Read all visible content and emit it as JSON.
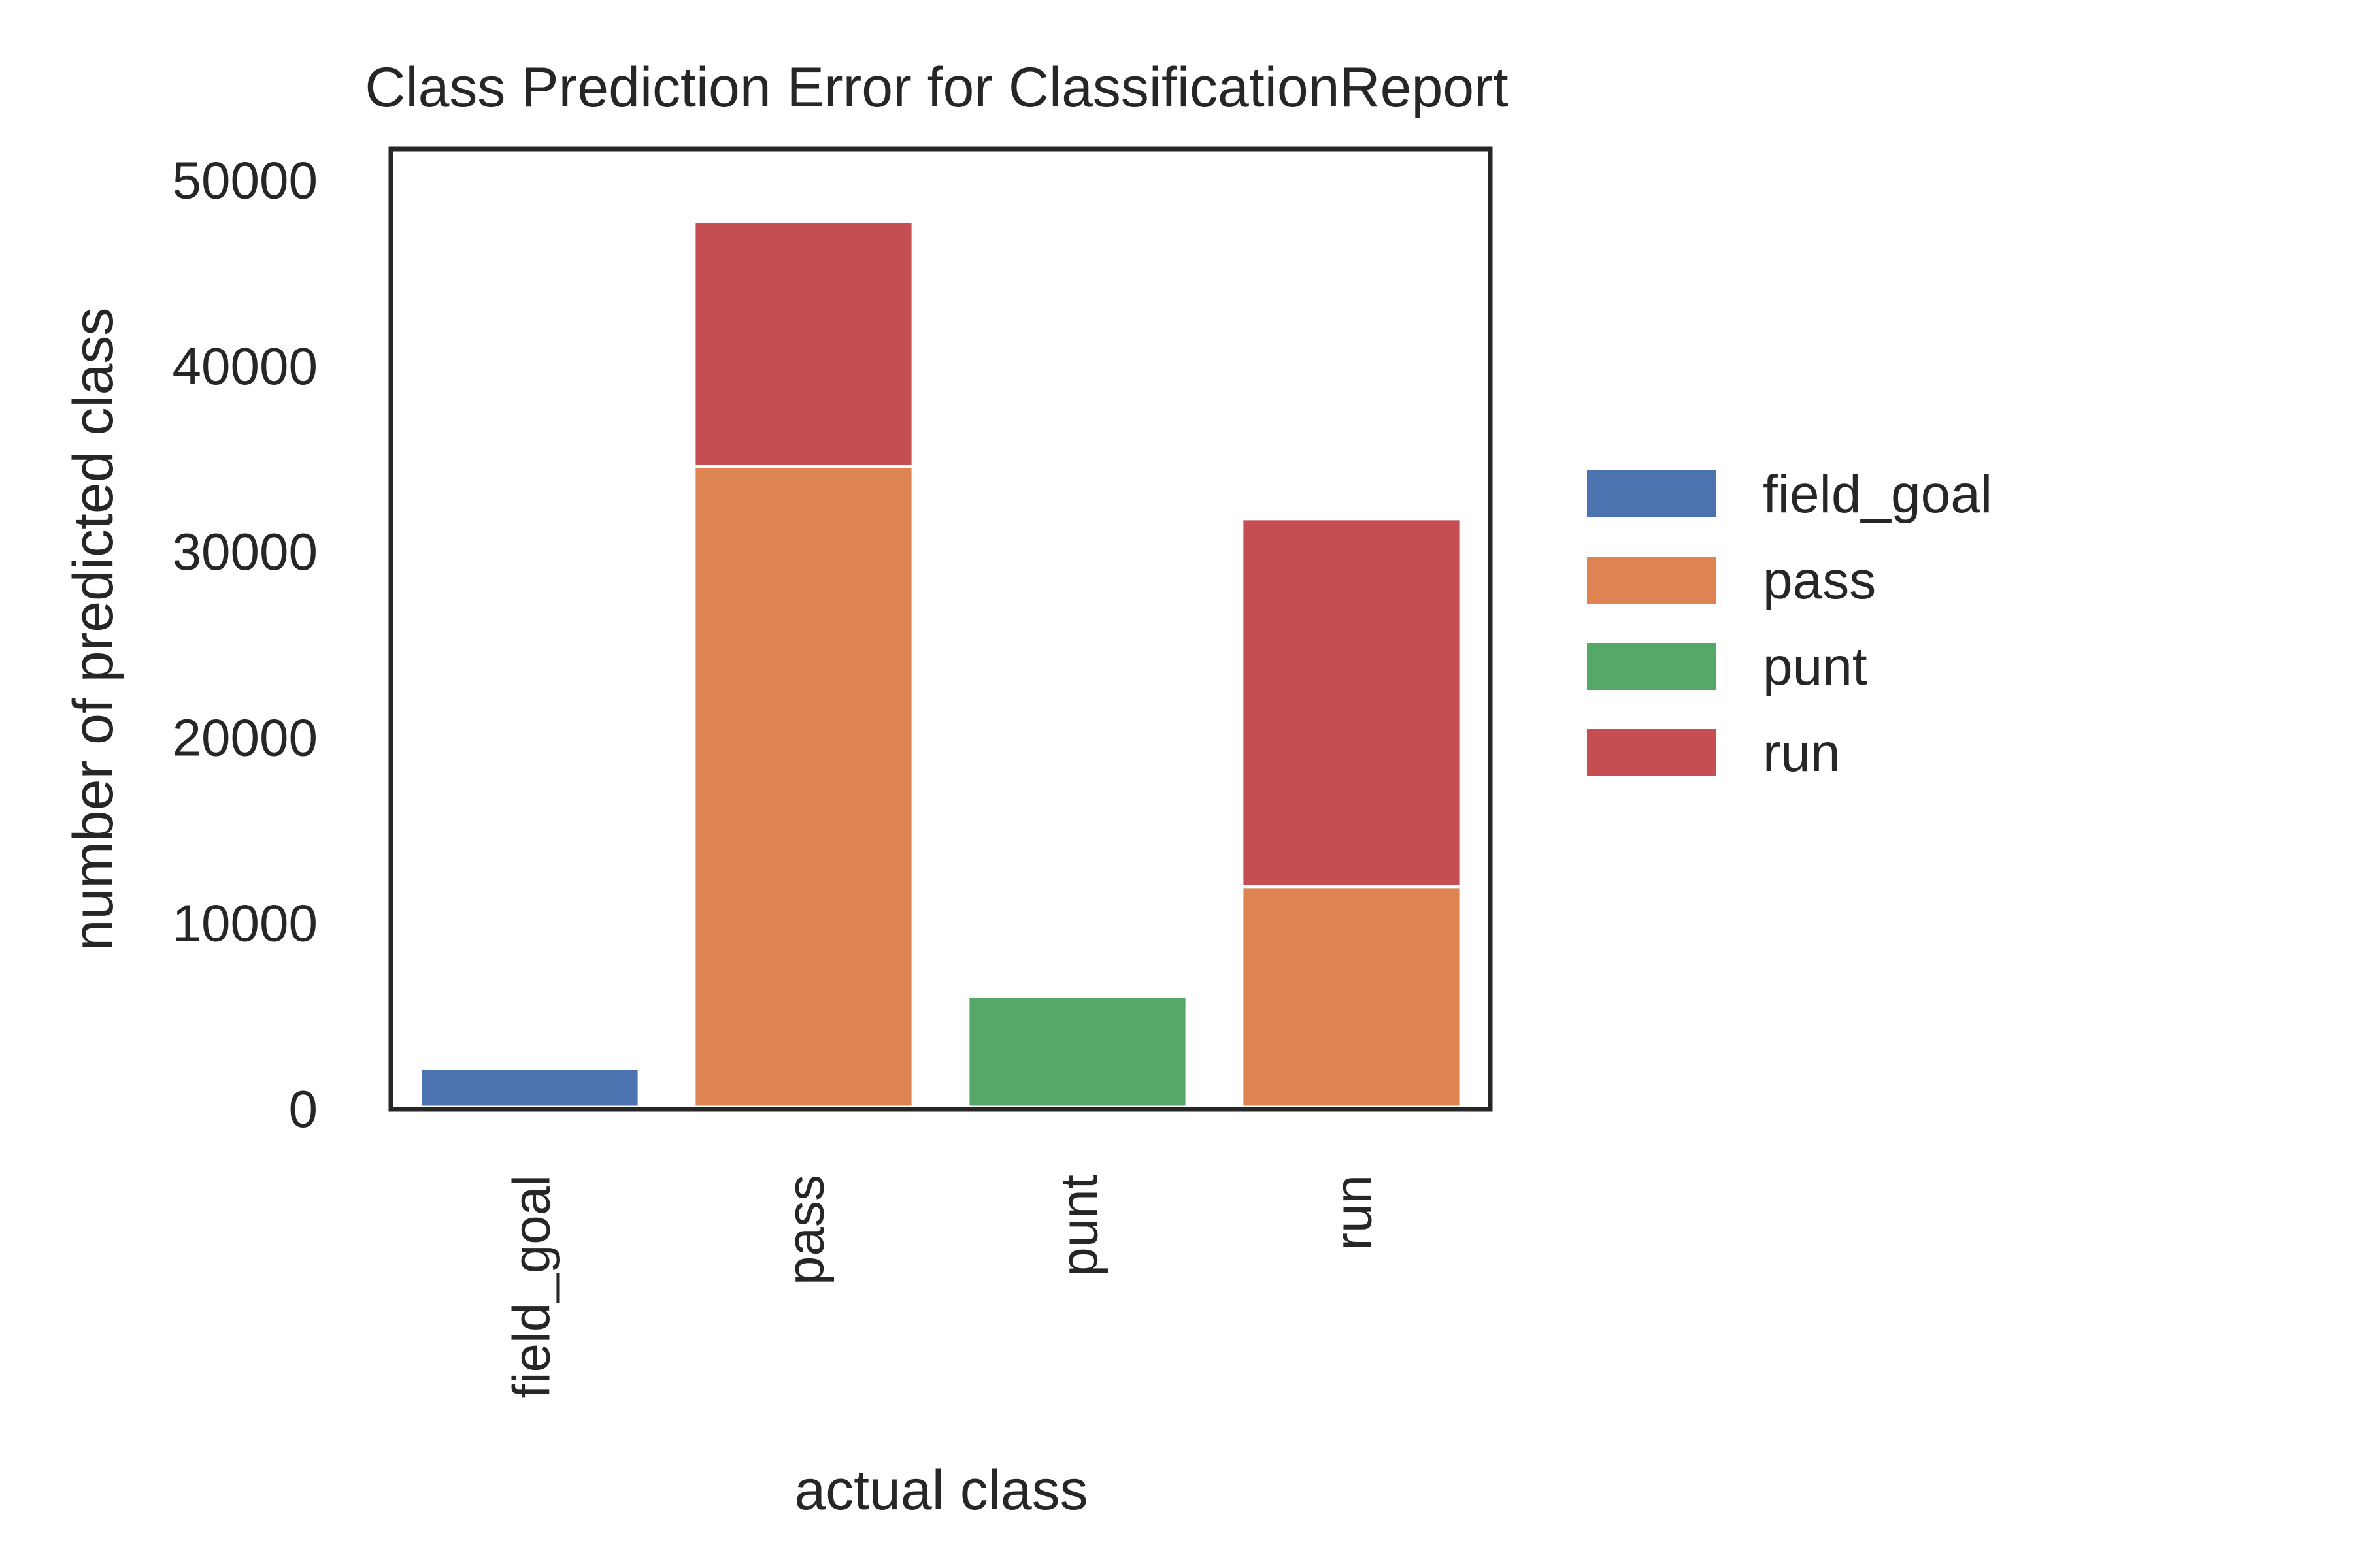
{
  "chart_data": {
    "type": "bar",
    "stacked": true,
    "title": "Class Prediction Error for ClassificationReport",
    "xlabel": "actual class",
    "ylabel": "number of predicted class",
    "categories": [
      "field_goal",
      "pass",
      "punt",
      "run"
    ],
    "ylim": [
      0,
      51500
    ],
    "yticks": [
      0,
      10000,
      20000,
      30000,
      40000,
      50000
    ],
    "ytick_labels": [
      "0",
      "10000",
      "20000",
      "30000",
      "40000",
      "50000"
    ],
    "grid": false,
    "legend_position": "right",
    "series": [
      {
        "name": "field_goal",
        "color": "#4c72b0",
        "values": [
          2100,
          0,
          0,
          0
        ]
      },
      {
        "name": "pass",
        "color": "#dd8452",
        "values": [
          0,
          34500,
          0,
          11900
        ]
      },
      {
        "name": "punt",
        "color": "#55a868",
        "values": [
          0,
          0,
          6000,
          0
        ]
      },
      {
        "name": "run",
        "color": "#c44e52",
        "values": [
          0,
          13200,
          0,
          19800
        ]
      }
    ]
  }
}
